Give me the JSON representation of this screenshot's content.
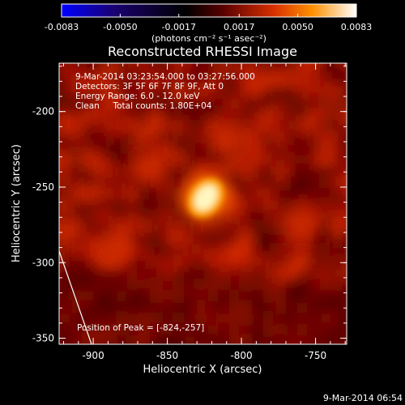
{
  "chart_data": {
    "type": "heatmap",
    "title": "Reconstructed RHESSI Image",
    "xlabel": "Heliocentric X (arcsec)",
    "ylabel": "Heliocentric Y (arcsec)",
    "xlim": [
      -923,
      -729
    ],
    "ylim": [
      -354,
      -168
    ],
    "xticks": [
      -900,
      -850,
      -800,
      -750
    ],
    "yticks": [
      -200,
      -250,
      -300,
      -350
    ],
    "colorbar": {
      "ticks": [
        "-0.0083",
        "-0.0050",
        "-0.0017",
        "0.0017",
        "0.0050",
        "0.0083"
      ],
      "range": [
        -0.0083,
        0.0083
      ],
      "unit_label": "(photons cm⁻² s⁻¹ asec⁻²)"
    },
    "annotations": [
      "9-Mar-2014 03:23:54.000 to 03:27:56.000",
      "Detectors: 3F 5F 6F 7F 8F 9F, Att 0",
      "Energy Range: 6.0 - 12.0 keV",
      "Clean     Total counts: 1.80E+04"
    ],
    "peak_label": "Position of Peak = [-824,-257]",
    "sources": [
      {
        "x": -824,
        "y": -257,
        "intensity": 1.0
      },
      {
        "x": -760,
        "y": -275,
        "intensity": 0.5
      },
      {
        "x": -862,
        "y": -237,
        "intensity": 0.42
      },
      {
        "x": -810,
        "y": -220,
        "intensity": 0.35
      },
      {
        "x": -885,
        "y": -290,
        "intensity": 0.35
      }
    ],
    "grid": false
  },
  "footer_timestamp": "9-Mar-2014 06:54"
}
